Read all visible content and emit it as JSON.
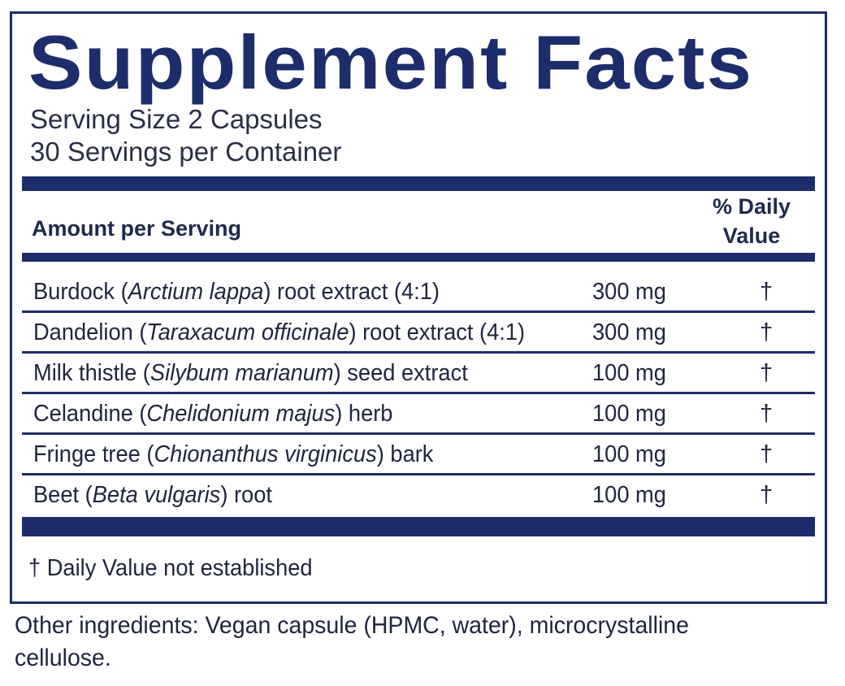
{
  "title": "Supplement Facts",
  "serving_size": "Serving Size 2 Capsules",
  "servings_per_container": "30 Servings per Container",
  "header": {
    "amount_label": "Amount per Serving",
    "daily_value_line1": "% Daily",
    "daily_value_line2": "Value"
  },
  "ingredients": [
    {
      "name_pre": "Burdock (",
      "latin": "Arctium lappa",
      "name_post": ") root extract (4:1)",
      "amount": "300 mg",
      "dv": "†"
    },
    {
      "name_pre": "Dandelion (",
      "latin": "Taraxacum officinale",
      "name_post": ") root extract (4:1)",
      "amount": "300 mg",
      "dv": "†"
    },
    {
      "name_pre": "Milk thistle (",
      "latin": "Silybum marianum",
      "name_post": ") seed extract",
      "amount": "100 mg",
      "dv": "†"
    },
    {
      "name_pre": "Celandine (",
      "latin": "Chelidonium majus",
      "name_post": ") herb",
      "amount": "100 mg",
      "dv": "†"
    },
    {
      "name_pre": "Fringe tree (",
      "latin": "Chionanthus virginicus",
      "name_post": ") bark",
      "amount": "100 mg",
      "dv": "†"
    },
    {
      "name_pre": "Beet (",
      "latin": "Beta vulgaris",
      "name_post": ") root",
      "amount": "100 mg",
      "dv": "†"
    }
  ],
  "footnote": "† Daily Value not established",
  "other_ingredients": "Other ingredients: Vegan capsule (HPMC, water), microcrystalline cellulose.",
  "colors": {
    "border_navy": "#1d2d6b",
    "text_dark": "#20263d"
  }
}
